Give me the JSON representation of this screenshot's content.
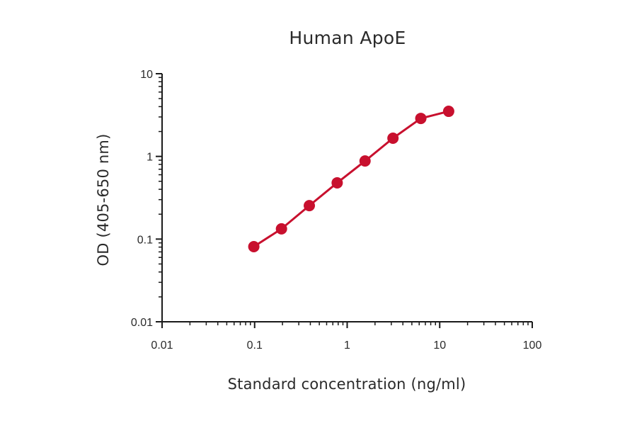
{
  "chart_data": {
    "type": "line",
    "title": "Human ApoE",
    "xlabel": "Standard concentration (ng/ml)",
    "ylabel": "OD (405-650 nm)",
    "xscale": "log",
    "yscale": "log",
    "xlim": [
      0.01,
      100
    ],
    "ylim": [
      0.01,
      10
    ],
    "x_ticks": [
      "0.01",
      "0.1",
      "1",
      "10",
      "100"
    ],
    "y_ticks": [
      "0.01",
      "0.1",
      "1",
      "10"
    ],
    "grid": false,
    "legend": null,
    "series": [
      {
        "name": "Human ApoE",
        "color": "#c8102e",
        "marker": "circle",
        "x": [
          0.098,
          0.195,
          0.39,
          0.78,
          1.56,
          3.125,
          6.25,
          12.5
        ],
        "y": [
          0.081,
          0.133,
          0.254,
          0.479,
          0.88,
          1.66,
          2.88,
          3.51
        ]
      }
    ]
  },
  "style": {
    "series_color": "#c8102e",
    "axis_color": "#1a1a1a",
    "text_color": "#2a2a2a"
  }
}
